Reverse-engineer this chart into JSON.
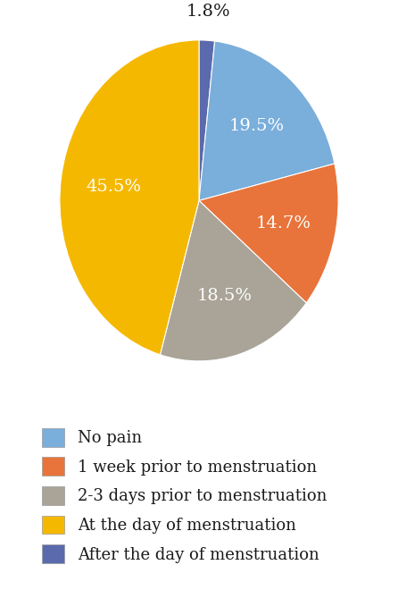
{
  "labels": [
    "No pain",
    "1 week prior to menstruation",
    "2-3 days prior to menstruation",
    "At the day of menstruation",
    "After the day of menstruation"
  ],
  "values": [
    19.5,
    14.7,
    18.5,
    45.5,
    1.8
  ],
  "colors": [
    "#7aaedb",
    "#e8743b",
    "#a9a497",
    "#f5b800",
    "#5b6aad"
  ],
  "text_color": "#ffffff",
  "legend_text_color": "#1a1a1a",
  "background_color": "#ffffff",
  "autopct_fontsize": 14,
  "legend_fontsize": 13
}
